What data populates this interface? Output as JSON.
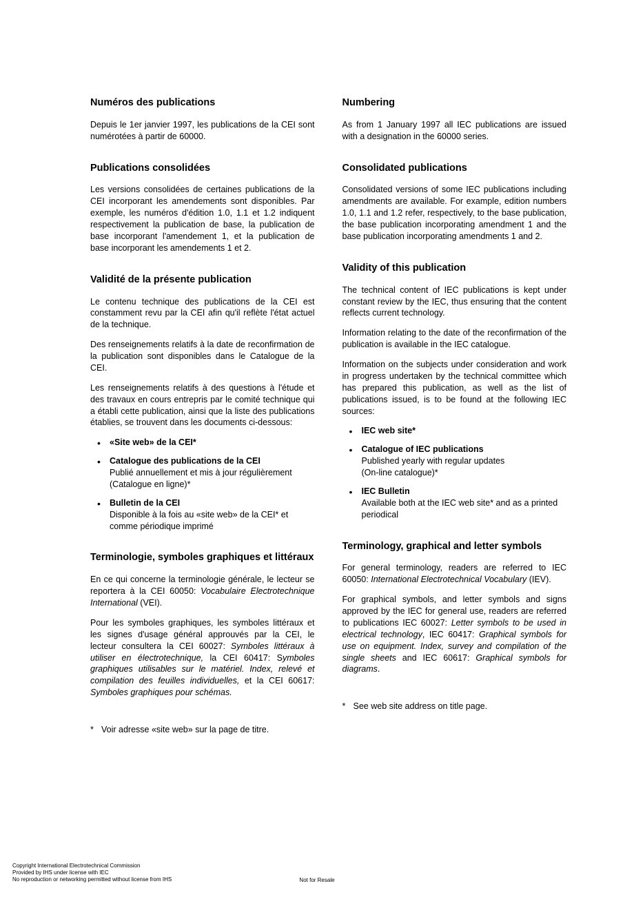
{
  "left": {
    "s1": {
      "heading": "Numéros des publications",
      "p1": "Depuis le 1er janvier 1997, les publications de la CEI sont numérotées à partir de 60000."
    },
    "s2": {
      "heading": "Publications consolidées",
      "p1": "Les versions consolidées de certaines publications de la CEI incorporant les amendements sont disponibles. Par exemple, les numéros d'édition 1.0, 1.1 et 1.2 indiquent respectivement la publication de base, la publication de base incorporant l'amendement 1, et la publication de base incorporant les amendements 1 et 2."
    },
    "s3": {
      "heading": "Validité de la présente publication",
      "p1": "Le contenu technique des publications de la CEI est constamment revu par la CEI afin qu'il reflète l'état actuel de la technique.",
      "p2": "Des renseignements relatifs à la date de reconfirmation de la publication sont disponibles dans le Catalogue de la CEI.",
      "p3": "Les renseignements relatifs à des questions à l'étude et des travaux en cours entrepris par le comité technique qui a établi cette publication, ainsi que la liste des publications établies, se trouvent dans les documents ci-dessous:",
      "li1": "«Site web» de la CEI*",
      "li2t": "Catalogue des publications de la CEI",
      "li2b": "Publié annuellement et mis à jour régulièrement\n(Catalogue en ligne)*",
      "li3t": "Bulletin de la CEI",
      "li3b": "Disponible à la fois au «site web» de la CEI* et comme périodique imprimé"
    },
    "s4": {
      "heading": "Terminologie, symboles graphiques et littéraux",
      "p1a": "En ce qui concerne la terminologie générale, le lecteur se reportera à la CEI 60050: ",
      "p1i": "Vocabulaire Electrotechnique International",
      "p1b": " (VEI).",
      "p2a": "Pour les symboles graphiques, les symboles littéraux et les signes d'usage général approuvés par la CEI, le lecteur consultera la CEI 60027: ",
      "p2i1": "Symboles littéraux à utiliser en électrotechnique,",
      "p2b": " la CEI 60417: S",
      "p2i2": "ymboles graphiques utilisables sur le matériel. Index, relevé et compilation des feuilles individuelles,",
      "p2c": " et la CEI 60617: ",
      "p2i3": "Symboles graphiques pour schémas."
    },
    "footnote": "Voir adresse «site web» sur la page de titre."
  },
  "right": {
    "s1": {
      "heading": "Numbering",
      "p1": "As from 1 January 1997 all IEC publications are issued with a designation in the 60000 series."
    },
    "s2": {
      "heading": "Consolidated publications",
      "p1": "Consolidated versions of some IEC publications including amendments are available. For example, edition numbers 1.0, 1.1 and 1.2 refer, respectively, to the base publication, the base publication incorporating amendment 1 and the base publication incorporating amendments 1 and 2."
    },
    "s3": {
      "heading": "Validity of this publication",
      "p1": "The technical content of IEC publications is kept under constant review by the IEC, thus ensuring that the content reflects current technology.",
      "p2": "Information relating to the date of the reconfirmation of the publication is available in the IEC catalogue.",
      "p3": "Information on the subjects under consideration and work in progress undertaken by the technical committee which has prepared this publication, as well as the list of publications issued, is to be found at the following IEC sources:",
      "li1": "IEC web site*",
      "li2t": "Catalogue of IEC publications",
      "li2b": "Published yearly with regular updates\n(On-line catalogue)*",
      "li3t": "IEC Bulletin",
      "li3b": "Available both at the IEC web site* and as a printed periodical"
    },
    "s4": {
      "heading": "Terminology, graphical and letter symbols",
      "p1a": "For general terminology, readers are referred to IEC 60050: ",
      "p1i": "International Electrotechnical Vocabulary",
      "p1b": " (IEV).",
      "p2a": "For graphical symbols, and letter symbols and signs approved by the IEC for general use, readers are referred to publications IEC 60027: ",
      "p2i1": "Letter symbols to be used in electrical technology",
      "p2b": ", IEC 60417: ",
      "p2i2": "Graphical symbols for use on equipment. Index, survey and compilation of the single sheets",
      "p2c": " and IEC 60617: ",
      "p2i3": "Graphical symbols for diagrams",
      "p2d": "."
    },
    "footnote": "See web site address on title page."
  },
  "footer": {
    "l1": "Copyright International Electrotechnical Commission",
    "l2": "Provided by IHS under license with IEC",
    "l3": "No reproduction or networking permitted without license from IHS",
    "center": "Not for Resale"
  }
}
